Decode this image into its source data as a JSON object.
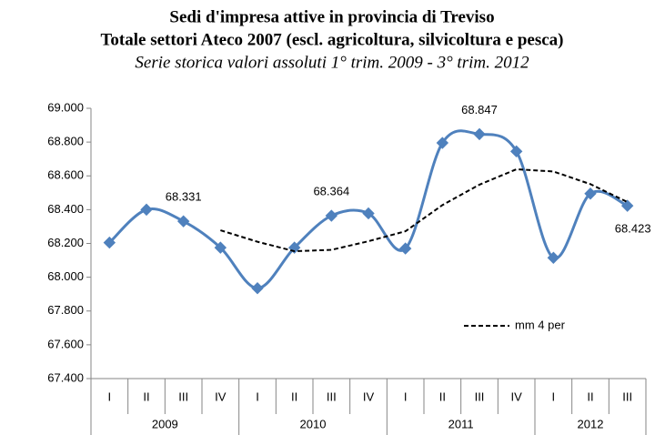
{
  "chart_data": {
    "type": "line",
    "title": "Sedi d'impresa attive in provincia di Treviso",
    "title2": "Totale settori Ateco 2007 (escl. agricoltura, silvicoltura e pesca)",
    "subtitle": "Serie storica valori assoluti 1° trim. 2009 - 3° trim. 2012",
    "categories": [
      "I",
      "II",
      "III",
      "IV",
      "I",
      "II",
      "III",
      "IV",
      "I",
      "II",
      "III",
      "IV",
      "I",
      "II",
      "III"
    ],
    "years": [
      "2009",
      "2010",
      "2011",
      "2012"
    ],
    "series": [
      {
        "color": "#4f81bd",
        "smooth": true,
        "marker": "diamond",
        "values": [
          68205,
          68400,
          68331,
          68175,
          67935,
          68175,
          68364,
          68378,
          68170,
          68795,
          68847,
          68745,
          68115,
          68495,
          68423
        ],
        "value_labels": [
          null,
          null,
          "68.331",
          null,
          null,
          null,
          "68.364",
          null,
          null,
          null,
          "68.847",
          null,
          null,
          null,
          "68.423"
        ]
      },
      {
        "name": "mm 4 per",
        "color": "#000000",
        "dash": true,
        "values": [
          null,
          null,
          null,
          68278,
          68210,
          68154,
          68162,
          68213,
          68272,
          68427,
          68548,
          68639,
          68626,
          68551,
          68445
        ]
      }
    ],
    "ylim": [
      67400,
      69000
    ],
    "yticks": [
      {
        "value": 67400,
        "label": "67.400"
      },
      {
        "value": 67600,
        "label": "67.600"
      },
      {
        "value": 67800,
        "label": "67.800"
      },
      {
        "value": 68000,
        "label": "68.000"
      },
      {
        "value": 68200,
        "label": "68.200"
      },
      {
        "value": 68400,
        "label": "68.400"
      },
      {
        "value": 68600,
        "label": "68.600"
      },
      {
        "value": 68800,
        "label": "68.800"
      },
      {
        "value": 69000,
        "label": "69.000"
      }
    ],
    "grid": false
  }
}
